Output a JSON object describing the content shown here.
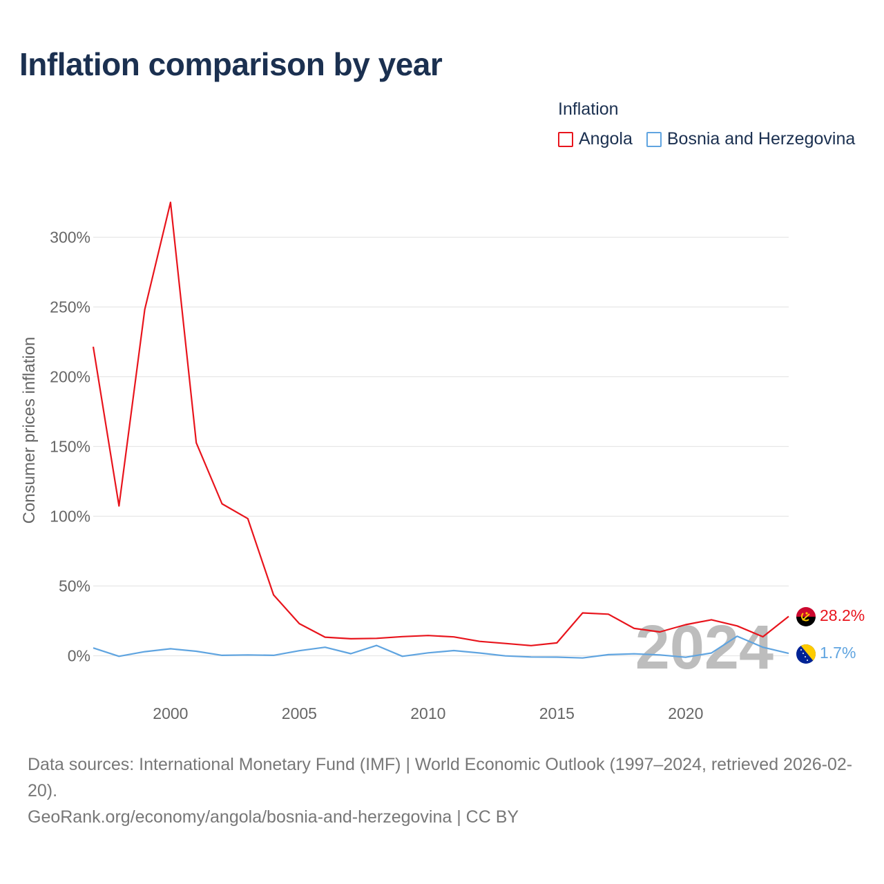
{
  "title": "Inflation comparison by year",
  "legend": {
    "title": "Inflation",
    "items": [
      {
        "label": "Angola",
        "color": "#e8141c"
      },
      {
        "label": "Bosnia and Herzegovina",
        "color": "#5fa4e0"
      }
    ]
  },
  "year_label": "2024",
  "footer": {
    "sources": "Data sources: International Monetary Fund (IMF) | World Economic Outlook (1997–2024, retrieved 2026-02-20).",
    "credit": "GeoRank.org/economy/angola/bosnia-and-herzegovina | CC BY"
  },
  "chart_data": {
    "type": "line",
    "title": "Inflation comparison by year",
    "xlabel": "",
    "ylabel": "Consumer prices inflation",
    "xlim": [
      1997,
      2024
    ],
    "ylim": [
      -25,
      325
    ],
    "x_ticks": [
      2000,
      2005,
      2010,
      2015,
      2020
    ],
    "y_ticks": [
      0,
      50,
      100,
      150,
      200,
      250,
      300
    ],
    "y_tick_labels": [
      "0%",
      "50%",
      "100%",
      "150%",
      "200%",
      "250%",
      "300%"
    ],
    "grid": true,
    "x": [
      1997,
      1998,
      1999,
      2000,
      2001,
      2002,
      2003,
      2004,
      2005,
      2006,
      2007,
      2008,
      2009,
      2010,
      2011,
      2012,
      2013,
      2014,
      2015,
      2016,
      2017,
      2018,
      2019,
      2020,
      2021,
      2022,
      2023,
      2024
    ],
    "series": [
      {
        "name": "Angola",
        "color": "#e8141c",
        "end_label": "28.2%",
        "values": [
          221.5,
          107.4,
          248.2,
          325.0,
          152.6,
          108.9,
          98.3,
          43.6,
          23.0,
          13.3,
          12.2,
          12.5,
          13.7,
          14.5,
          13.5,
          10.3,
          8.8,
          7.3,
          9.2,
          30.7,
          29.8,
          19.6,
          17.1,
          22.3,
          25.8,
          21.4,
          13.6,
          28.2
        ]
      },
      {
        "name": "Bosnia and Herzegovina",
        "color": "#5fa4e0",
        "end_label": "1.7%",
        "values": [
          5.6,
          -0.4,
          2.9,
          5.0,
          3.2,
          0.3,
          0.6,
          0.3,
          3.6,
          6.1,
          1.5,
          7.4,
          -0.4,
          2.1,
          3.7,
          2.0,
          -0.1,
          -0.9,
          -1.0,
          -1.6,
          0.8,
          1.4,
          0.6,
          -1.1,
          2.0,
          14.0,
          6.1,
          1.7
        ]
      }
    ]
  }
}
